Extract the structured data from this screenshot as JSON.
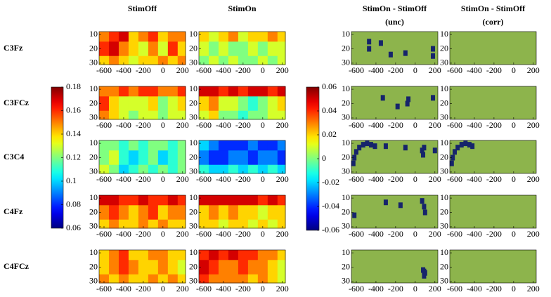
{
  "chart_data": {
    "type": "heatmap",
    "colormap": "jet",
    "columns": [
      {
        "title": [
          "StimOff"
        ]
      },
      {
        "title": [
          "StimOn"
        ]
      },
      {
        "title": [
          "StimOn - StimOff",
          "(unc)"
        ]
      },
      {
        "title": [
          "StimOn - StimOff",
          "(corr)"
        ]
      }
    ],
    "x": [
      -600,
      -500,
      -400,
      -300,
      -200,
      -100,
      0,
      100,
      200
    ],
    "y": [
      10,
      20,
      30
    ],
    "xlim": [
      -650,
      230
    ],
    "ylim": [
      8,
      31
    ],
    "y_inverted": true,
    "xticks": [
      -600,
      -400,
      -200,
      0,
      200
    ],
    "yticks": [
      10,
      20,
      30
    ],
    "colorbars": [
      {
        "lim": [
          0.06,
          0.18
        ],
        "ticks": [
          0.06,
          0.08,
          0.1,
          0.12,
          0.14,
          0.16,
          0.18
        ]
      },
      {
        "lim": [
          -0.06,
          0.06
        ],
        "ticks": [
          -0.06,
          -0.04,
          -0.02,
          0,
          0.02,
          0.04,
          0.06
        ]
      }
    ],
    "mask_colors": {
      "not_significant": "#8db44c",
      "significant": "#16246b"
    },
    "rows": [
      {
        "label": "C3Fz",
        "stim_off": [
          [
            0.15,
            0.16,
            0.17,
            0.14,
            0.15,
            0.16,
            0.14,
            0.15,
            0.15
          ],
          [
            0.16,
            0.17,
            0.15,
            0.14,
            0.13,
            0.15,
            0.13,
            0.16,
            0.14
          ],
          [
            0.14,
            0.15,
            0.14,
            0.13,
            0.14,
            0.14,
            0.15,
            0.14,
            0.15
          ]
        ],
        "stim_on": [
          [
            0.14,
            0.13,
            0.14,
            0.15,
            0.13,
            0.14,
            0.14,
            0.15,
            0.14
          ],
          [
            0.13,
            0.12,
            0.13,
            0.12,
            0.12,
            0.13,
            0.12,
            0.13,
            0.13
          ],
          [
            0.12,
            0.13,
            0.12,
            0.13,
            0.12,
            0.12,
            0.13,
            0.12,
            0.13
          ]
        ],
        "unc": [
          [
            -470,
            15
          ],
          [
            -470,
            20
          ],
          [
            -350,
            16
          ],
          [
            -250,
            24
          ],
          [
            -100,
            23
          ],
          [
            180,
            20
          ],
          [
            180,
            25
          ]
        ],
        "corr": []
      },
      {
        "label": "C3FCz",
        "stim_off": [
          [
            0.15,
            0.15,
            0.16,
            0.15,
            0.16,
            0.16,
            0.15,
            0.15,
            0.16
          ],
          [
            0.16,
            0.14,
            0.13,
            0.13,
            0.13,
            0.14,
            0.12,
            0.13,
            0.14
          ],
          [
            0.15,
            0.14,
            0.13,
            0.12,
            0.13,
            0.13,
            0.12,
            0.13,
            0.13
          ]
        ],
        "stim_on": [
          [
            0.17,
            0.17,
            0.16,
            0.17,
            0.16,
            0.17,
            0.17,
            0.16,
            0.17
          ],
          [
            0.14,
            0.15,
            0.13,
            0.13,
            0.12,
            0.11,
            0.12,
            0.13,
            0.14
          ],
          [
            0.13,
            0.14,
            0.12,
            0.12,
            0.11,
            0.12,
            0.12,
            0.13,
            0.13
          ]
        ],
        "unc": [
          [
            -330,
            16
          ],
          [
            -180,
            22
          ],
          [
            -80,
            20
          ],
          [
            -70,
            17
          ],
          [
            180,
            16
          ]
        ],
        "corr": []
      },
      {
        "label": "C3C4",
        "stim_off": [
          [
            0.12,
            0.12,
            0.11,
            0.12,
            0.11,
            0.12,
            0.12,
            0.11,
            0.12
          ],
          [
            0.12,
            0.13,
            0.11,
            0.1,
            0.11,
            0.12,
            0.1,
            0.11,
            0.12
          ],
          [
            0.13,
            0.12,
            0.1,
            0.11,
            0.12,
            0.11,
            0.12,
            0.11,
            0.12
          ]
        ],
        "stim_on": [
          [
            0.1,
            0.09,
            0.08,
            0.08,
            0.08,
            0.09,
            0.08,
            0.08,
            0.09
          ],
          [
            0.09,
            0.08,
            0.08,
            0.09,
            0.09,
            0.08,
            0.09,
            0.09,
            0.08
          ],
          [
            0.11,
            0.1,
            0.1,
            0.11,
            0.1,
            0.11,
            0.1,
            0.11,
            0.1
          ]
        ],
        "unc": [
          [
            -630,
            24
          ],
          [
            -620,
            20
          ],
          [
            -600,
            16
          ],
          [
            -570,
            13
          ],
          [
            -530,
            11
          ],
          [
            -490,
            10
          ],
          [
            -450,
            11
          ],
          [
            -410,
            12
          ],
          [
            -300,
            12
          ],
          [
            -100,
            13
          ],
          [
            70,
            15
          ],
          [
            80,
            18
          ],
          [
            90,
            13
          ],
          [
            200,
            15
          ]
        ],
        "corr": [
          [
            -630,
            24
          ],
          [
            -620,
            20
          ],
          [
            -600,
            16
          ],
          [
            -570,
            13
          ],
          [
            -530,
            11
          ],
          [
            -490,
            10
          ],
          [
            -450,
            11
          ],
          [
            -420,
            12
          ]
        ]
      },
      {
        "label": "C4Fz",
        "stim_off": [
          [
            0.17,
            0.17,
            0.16,
            0.16,
            0.17,
            0.16,
            0.16,
            0.17,
            0.16
          ],
          [
            0.15,
            0.16,
            0.15,
            0.14,
            0.15,
            0.16,
            0.14,
            0.15,
            0.15
          ],
          [
            0.14,
            0.15,
            0.14,
            0.14,
            0.15,
            0.14,
            0.15,
            0.14,
            0.14
          ]
        ],
        "stim_on": [
          [
            0.17,
            0.17,
            0.17,
            0.17,
            0.17,
            0.17,
            0.16,
            0.17,
            0.16
          ],
          [
            0.14,
            0.15,
            0.14,
            0.15,
            0.14,
            0.14,
            0.13,
            0.14,
            0.14
          ],
          [
            0.14,
            0.14,
            0.13,
            0.14,
            0.14,
            0.13,
            0.14,
            0.13,
            0.14
          ]
        ],
        "unc": [
          [
            -620,
            22
          ],
          [
            -300,
            13
          ],
          [
            -150,
            15
          ],
          [
            70,
            12
          ],
          [
            90,
            16
          ],
          [
            100,
            20
          ]
        ],
        "corr": []
      },
      {
        "label": "C4FCz",
        "stim_off": [
          [
            0.14,
            0.15,
            0.16,
            0.14,
            0.14,
            0.15,
            0.15,
            0.14,
            0.14
          ],
          [
            0.14,
            0.15,
            0.16,
            0.15,
            0.14,
            0.14,
            0.15,
            0.14,
            0.13
          ],
          [
            0.15,
            0.14,
            0.15,
            0.14,
            0.14,
            0.15,
            0.14,
            0.15,
            0.14
          ]
        ],
        "stim_on": [
          [
            0.16,
            0.17,
            0.16,
            0.17,
            0.16,
            0.16,
            0.15,
            0.15,
            0.14
          ],
          [
            0.17,
            0.16,
            0.15,
            0.15,
            0.16,
            0.15,
            0.15,
            0.14,
            0.13
          ],
          [
            0.16,
            0.15,
            0.15,
            0.15,
            0.15,
            0.14,
            0.15,
            0.14,
            0.13
          ]
        ],
        "unc": [
          [
            80,
            22
          ],
          [
            90,
            26
          ],
          [
            100,
            24
          ],
          [
            90,
            23
          ]
        ],
        "corr": []
      }
    ]
  }
}
